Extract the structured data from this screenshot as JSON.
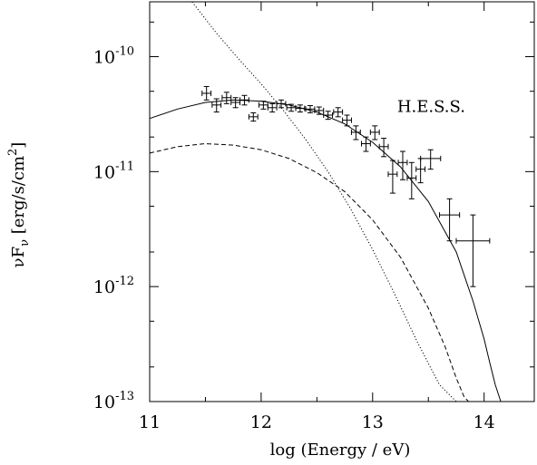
{
  "chart_data": {
    "type": "scatter",
    "title": "",
    "xlabel": "log (Energy / eV)",
    "ylabel": {
      "prefix": "νF",
      "sub": "ν",
      "bracket_open": " [erg/s/cm",
      "sup": "2",
      "bracket_close": "]"
    },
    "xlim": [
      11,
      14.45
    ],
    "ylim": [
      1e-13,
      3e-10
    ],
    "yscale": "log",
    "grid": false,
    "x_ticks": [
      {
        "value": 11,
        "label": "11"
      },
      {
        "value": 12,
        "label": "12"
      },
      {
        "value": 13,
        "label": "13"
      },
      {
        "value": 14,
        "label": "14"
      }
    ],
    "y_ticks": [
      {
        "value": 1e-10,
        "base": "10",
        "exp": "-10"
      },
      {
        "value": 1e-11,
        "base": "10",
        "exp": "-11"
      },
      {
        "value": 1e-12,
        "base": "10",
        "exp": "-12"
      },
      {
        "value": 1e-13,
        "base": "10",
        "exp": "-13"
      }
    ],
    "annotations": [
      {
        "text": "H.E.S.S.",
        "x": 13.22,
        "y": 3.3e-11
      }
    ],
    "series": [
      {
        "style": "points-with-errorbars",
        "x": [
          11.51,
          11.6,
          11.69,
          11.77,
          11.85,
          11.93,
          12.02,
          12.1,
          12.18,
          12.27,
          12.35,
          12.44,
          12.52,
          12.6,
          12.69,
          12.77,
          12.85,
          12.94,
          13.02,
          13.1,
          13.18,
          13.27,
          13.35,
          13.43,
          13.52,
          13.69,
          13.9
        ],
        "y": [
          4.8e-11,
          3.8e-11,
          4.4e-11,
          4e-11,
          4.2e-11,
          3e-11,
          3.8e-11,
          3.6e-11,
          3.9e-11,
          3.6e-11,
          3.55e-11,
          3.5e-11,
          3.4e-11,
          3.1e-11,
          3.3e-11,
          2.8e-11,
          2.2e-11,
          1.75e-11,
          2.2e-11,
          1.65e-11,
          9.5e-12,
          1.2e-11,
          8.8e-12,
          1.05e-11,
          1.3e-11,
          4.2e-12,
          2.5e-12
        ],
        "ylo": [
          4.2e-11,
          3.3e-11,
          3.9e-11,
          3.6e-11,
          3.8e-11,
          2.75e-11,
          3.5e-11,
          3.3e-11,
          3.6e-11,
          3.35e-11,
          3.3e-11,
          3.25e-11,
          3.15e-11,
          2.85e-11,
          3e-11,
          2.5e-11,
          1.9e-11,
          1.5e-11,
          1.9e-11,
          1.35e-11,
          6.5e-12,
          8.5e-12,
          5.8e-12,
          8e-12,
          1.05e-11,
          2.5e-12,
          1e-12
        ],
        "yhi": [
          5.5e-11,
          4.3e-11,
          4.9e-11,
          4.4e-11,
          4.6e-11,
          3.25e-11,
          4.1e-11,
          3.9e-11,
          4.2e-11,
          3.85e-11,
          3.8e-11,
          3.75e-11,
          3.65e-11,
          3.35e-11,
          3.6e-11,
          3.1e-11,
          2.5e-11,
          2e-11,
          2.5e-11,
          1.95e-11,
          1.25e-11,
          1.5e-11,
          1.2e-11,
          1.3e-11,
          1.55e-11,
          5.8e-12,
          4.2e-12
        ],
        "xerr": 0.04,
        "xerr_last": [
          0.09,
          0.09,
          0.15
        ]
      },
      {
        "style": "solid",
        "x": [
          11,
          11.25,
          11.5,
          11.75,
          12.0,
          12.25,
          12.5,
          12.75,
          13.0,
          13.25,
          13.5,
          13.75,
          13.9,
          14.0,
          14.05,
          14.1,
          14.15
        ],
        "y": [
          2.9e-11,
          3.5e-11,
          4e-11,
          4.2e-11,
          4.1e-11,
          3.8e-11,
          3.3e-11,
          2.6e-11,
          1.8e-11,
          1.1e-11,
          5.5e-12,
          2e-12,
          7.5e-13,
          3.5e-13,
          2.2e-13,
          1.4e-13,
          9e-14
        ]
      },
      {
        "style": "dashed",
        "x": [
          11,
          11.25,
          11.5,
          11.75,
          12.0,
          12.25,
          12.5,
          12.75,
          13.0,
          13.25,
          13.5,
          13.65,
          13.75,
          13.82,
          13.86,
          13.9
        ],
        "y": [
          1.45e-11,
          1.65e-11,
          1.75e-11,
          1.7e-11,
          1.55e-11,
          1.3e-11,
          9.8e-12,
          6.7e-12,
          3.8e-12,
          1.8e-12,
          6.5e-13,
          3e-13,
          1.6e-13,
          1.1e-13,
          9e-14,
          7e-14
        ]
      },
      {
        "style": "dotted",
        "x": [
          11.38,
          11.6,
          11.8,
          12.0,
          12.2,
          12.4,
          12.6,
          12.8,
          13.0,
          13.2,
          13.4,
          13.6,
          13.75,
          13.85
        ],
        "y": [
          3e-10,
          1.6e-10,
          9.5e-11,
          5.8e-11,
          3.4e-11,
          1.9e-11,
          1e-11,
          4.8e-12,
          2.1e-12,
          8.5e-13,
          3.3e-13,
          1.4e-13,
          1e-13,
          9e-14
        ]
      }
    ]
  }
}
